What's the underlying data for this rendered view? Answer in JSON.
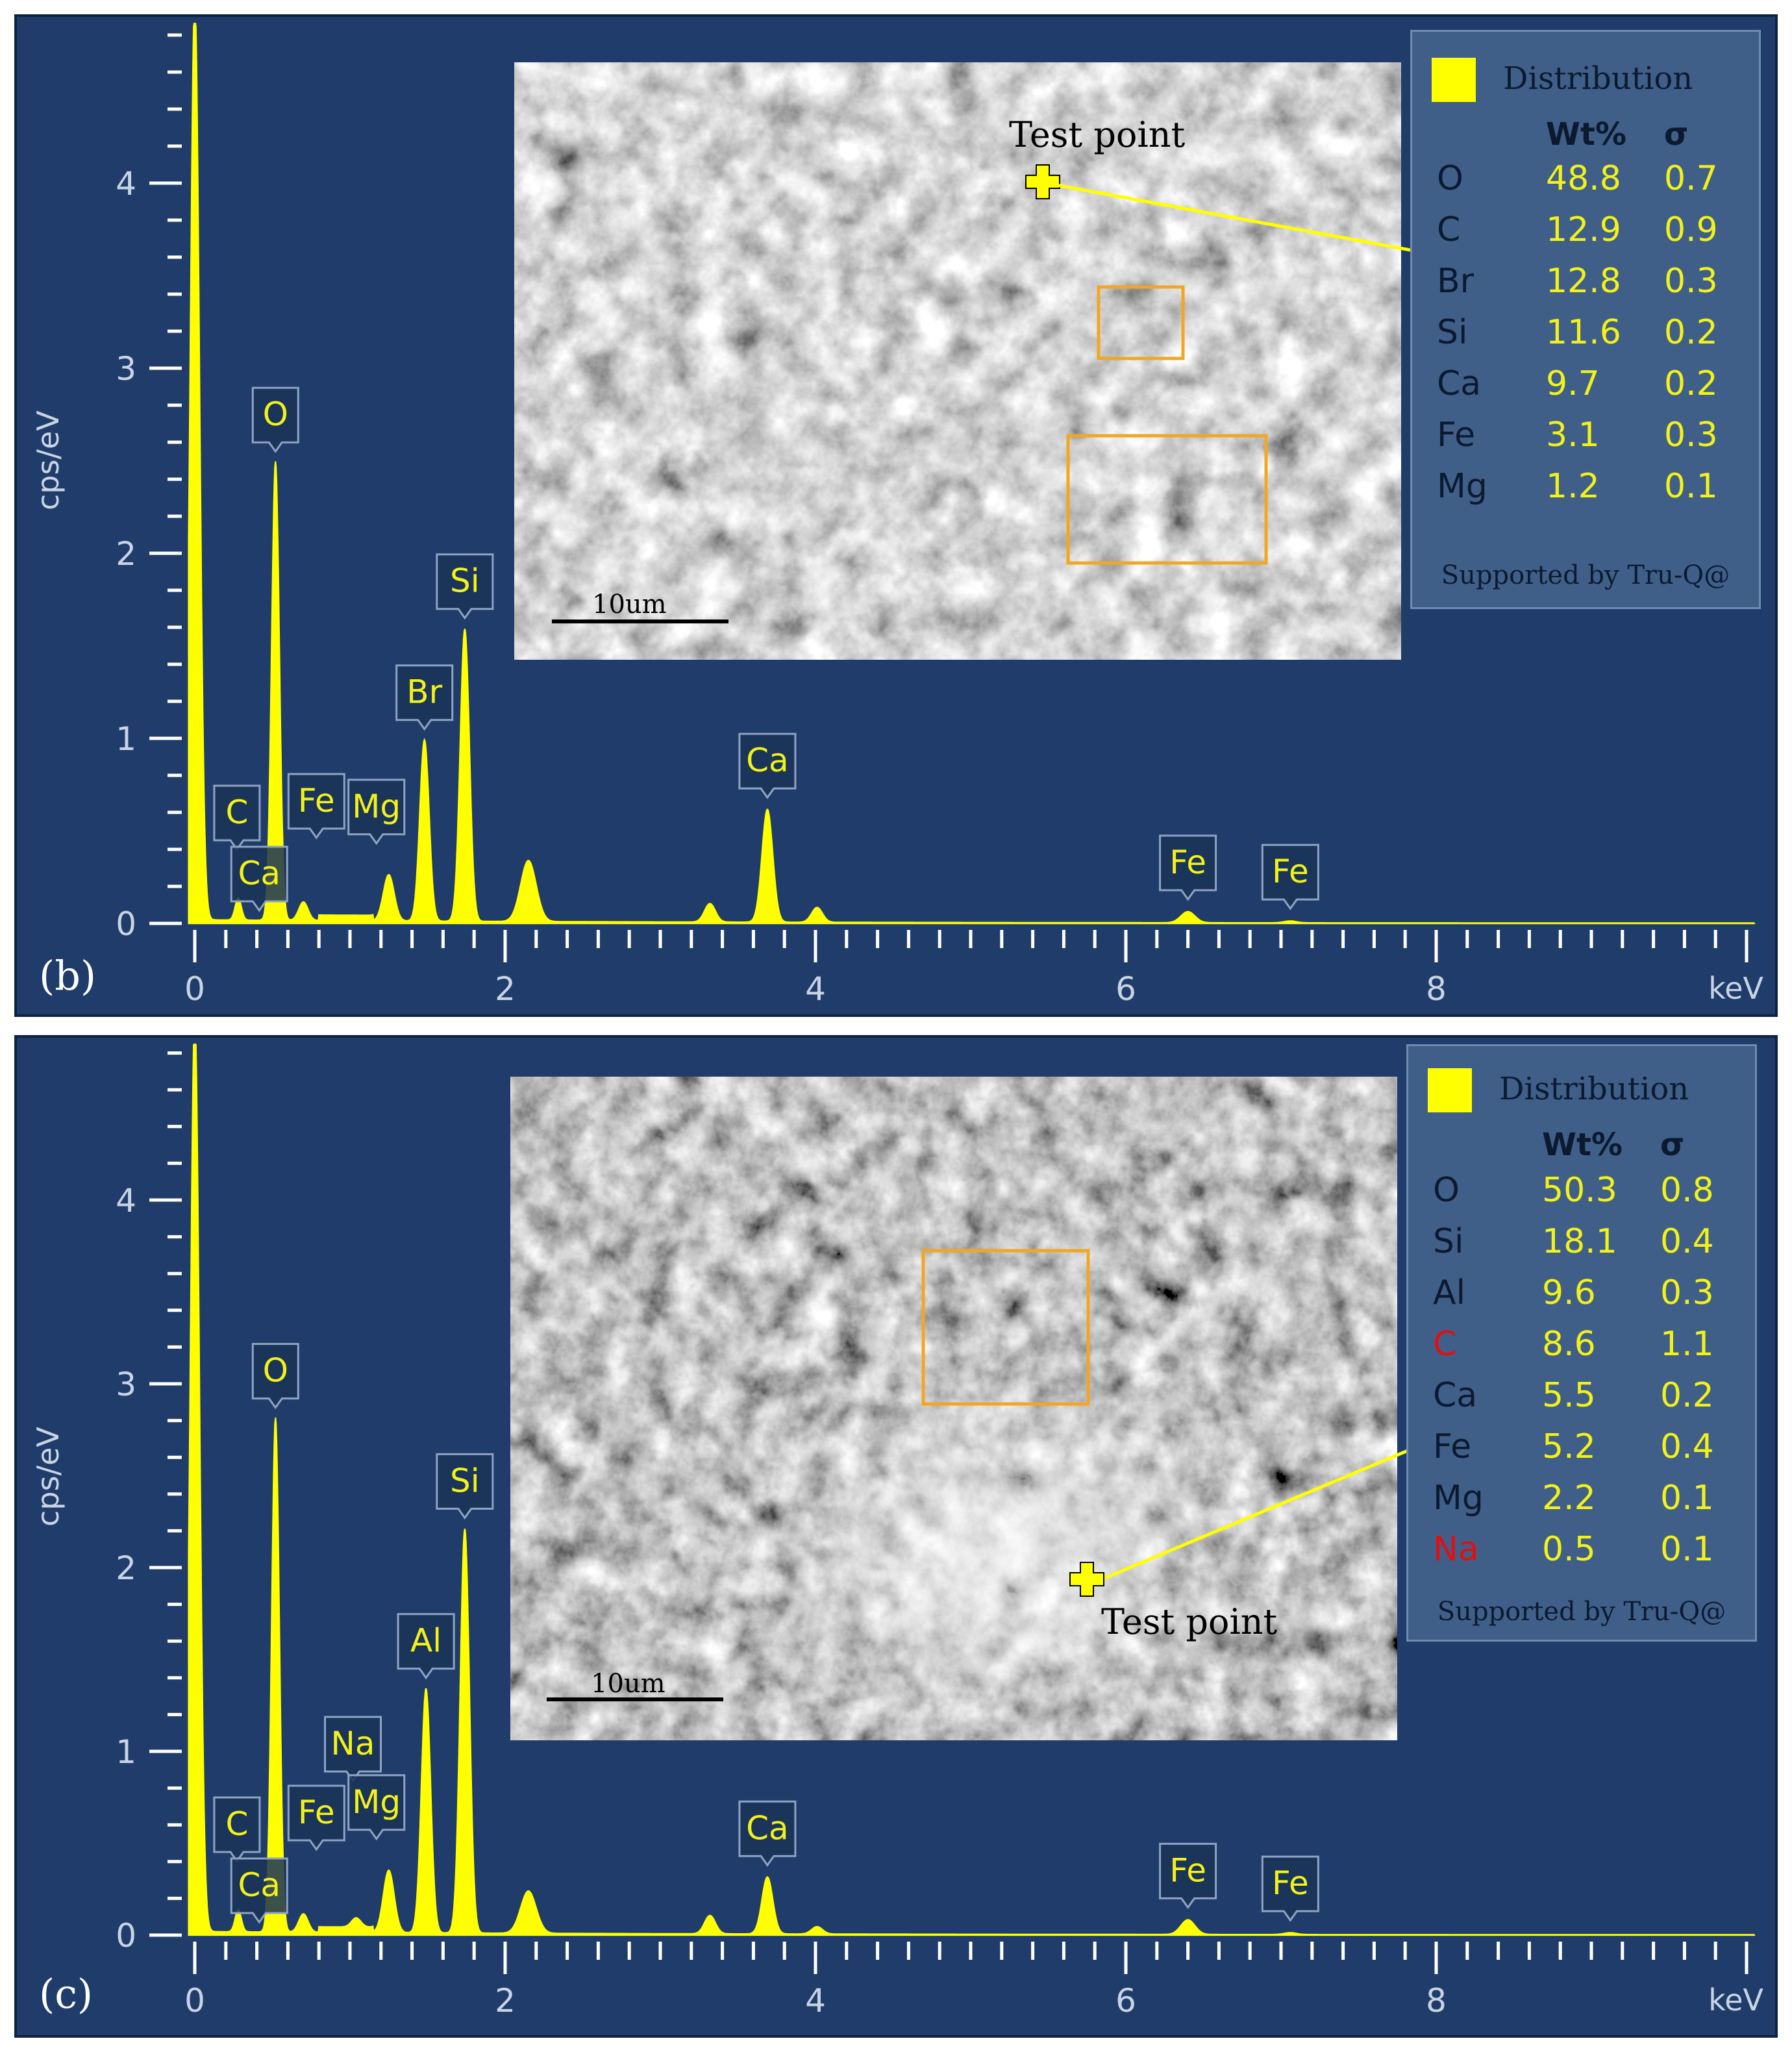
{
  "chart_data": [
    {
      "type": "line",
      "panel_label": "(b)",
      "xlabel": "keV",
      "ylabel": "cps/eV",
      "xlim": [
        -0.1,
        10.05
      ],
      "ylim": [
        0,
        4.9
      ],
      "x_ticks": [
        "0",
        "2",
        "4",
        "6",
        "8"
      ],
      "y_ticks": [
        "0",
        "1",
        "2",
        "3",
        "4"
      ],
      "series_color": "#ffff00",
      "peaks": [
        [
          0,
          5.0,
          0.03
        ],
        [
          0.28,
          0.12,
          0.02
        ],
        [
          0.52,
          2.48,
          0.025
        ],
        [
          0.7,
          0.1,
          0.03
        ],
        [
          1.25,
          0.25,
          0.035
        ],
        [
          1.48,
          0.98,
          0.03
        ],
        [
          1.74,
          1.58,
          0.03
        ],
        [
          2.15,
          0.33,
          0.05
        ],
        [
          3.32,
          0.1,
          0.035
        ],
        [
          3.69,
          0.61,
          0.035
        ],
        [
          4.01,
          0.08,
          0.035
        ],
        [
          6.4,
          0.06,
          0.045
        ],
        [
          7.06,
          0.01,
          0.04
        ]
      ],
      "peak_labels": [
        {
          "label": "O",
          "keV": 0.52,
          "cps": 2.48
        },
        {
          "label": "C",
          "keV": 0.28,
          "cps": 0.12
        },
        {
          "label": "Ca",
          "keV": 0.34,
          "cps": 0.08
        },
        {
          "label": "Fe",
          "keV": 0.7,
          "cps": 0.1
        },
        {
          "label": "Mg",
          "keV": 1.25,
          "cps": 0.25
        },
        {
          "label": "Br",
          "keV": 1.48,
          "cps": 0.98
        },
        {
          "label": "Si",
          "keV": 1.74,
          "cps": 1.58
        },
        {
          "label": "Ca",
          "keV": 3.69,
          "cps": 0.61
        },
        {
          "label": "Fe",
          "keV": 6.4,
          "cps": 0.06
        },
        {
          "label": "Fe",
          "keV": 7.06,
          "cps": 0.01
        }
      ],
      "inset": {
        "scale_label": "10um",
        "test_point_label": "Test point"
      },
      "table": {
        "legend_label": "Distribution",
        "col_wt": "Wt%",
        "col_sigma": "σ",
        "rows": [
          {
            "element": "O",
            "wt": "48.8",
            "sigma": "0.7",
            "color": "#0c1a30"
          },
          {
            "element": "C",
            "wt": "12.9",
            "sigma": "0.9",
            "color": "#0c1a30"
          },
          {
            "element": "Br",
            "wt": "12.8",
            "sigma": "0.3",
            "color": "#0c1a30"
          },
          {
            "element": "Si",
            "wt": "11.6",
            "sigma": "0.2",
            "color": "#0c1a30"
          },
          {
            "element": "Ca",
            "wt": "9.7",
            "sigma": "0.2",
            "color": "#0c1a30"
          },
          {
            "element": "Fe",
            "wt": "3.1",
            "sigma": "0.3",
            "color": "#0c1a30"
          },
          {
            "element": "Mg",
            "wt": "1.2",
            "sigma": "0.1",
            "color": "#0c1a30"
          }
        ],
        "support": "Supported by Tru-Q@"
      }
    },
    {
      "type": "line",
      "panel_label": "(c)",
      "xlabel": "keV",
      "ylabel": "cps/eV",
      "xlim": [
        -0.1,
        10.05
      ],
      "ylim": [
        0,
        4.9
      ],
      "x_ticks": [
        "0",
        "2",
        "4",
        "6",
        "8"
      ],
      "y_ticks": [
        "0",
        "1",
        "2",
        "3",
        "4"
      ],
      "series_color": "#ffff00",
      "peaks": [
        [
          0,
          5.0,
          0.03
        ],
        [
          0.28,
          0.12,
          0.02
        ],
        [
          0.52,
          2.8,
          0.025
        ],
        [
          0.7,
          0.1,
          0.03
        ],
        [
          1.04,
          0.05,
          0.03
        ],
        [
          1.25,
          0.34,
          0.035
        ],
        [
          1.49,
          1.33,
          0.03
        ],
        [
          1.74,
          2.2,
          0.03
        ],
        [
          2.15,
          0.23,
          0.05
        ],
        [
          3.32,
          0.1,
          0.035
        ],
        [
          3.69,
          0.31,
          0.035
        ],
        [
          4.01,
          0.04,
          0.035
        ],
        [
          6.4,
          0.08,
          0.045
        ],
        [
          7.06,
          0.01,
          0.04
        ]
      ],
      "peak_labels": [
        {
          "label": "O",
          "keV": 0.52,
          "cps": 2.8
        },
        {
          "label": "C",
          "keV": 0.28,
          "cps": 0.12
        },
        {
          "label": "Ca",
          "keV": 0.34,
          "cps": 0.08
        },
        {
          "label": "Fe",
          "keV": 0.7,
          "cps": 0.1
        },
        {
          "label": "Na",
          "keV": 1.04,
          "cps": 0.05
        },
        {
          "label": "Mg",
          "keV": 1.25,
          "cps": 0.34
        },
        {
          "label": "Al",
          "keV": 1.49,
          "cps": 1.33
        },
        {
          "label": "Si",
          "keV": 1.74,
          "cps": 2.2
        },
        {
          "label": "Ca",
          "keV": 3.69,
          "cps": 0.31
        },
        {
          "label": "Fe",
          "keV": 6.4,
          "cps": 0.08
        },
        {
          "label": "Fe",
          "keV": 7.06,
          "cps": 0.01
        }
      ],
      "inset": {
        "scale_label": "10um",
        "test_point_label": "Test point"
      },
      "table": {
        "legend_label": "Distribution",
        "col_wt": "Wt%",
        "col_sigma": "σ",
        "rows": [
          {
            "element": "O",
            "wt": "50.3",
            "sigma": "0.8",
            "color": "#0c1a30"
          },
          {
            "element": "Si",
            "wt": "18.1",
            "sigma": "0.4",
            "color": "#0c1a30"
          },
          {
            "element": "Al",
            "wt": "9.6",
            "sigma": "0.3",
            "color": "#0c1a30"
          },
          {
            "element": "C",
            "wt": "8.6",
            "sigma": "1.1",
            "color": "#e01010"
          },
          {
            "element": "Ca",
            "wt": "5.5",
            "sigma": "0.2",
            "color": "#0c1a30"
          },
          {
            "element": "Fe",
            "wt": "5.2",
            "sigma": "0.4",
            "color": "#0c1a30"
          },
          {
            "element": "Mg",
            "wt": "2.2",
            "sigma": "0.1",
            "color": "#0c1a30"
          },
          {
            "element": "Na",
            "wt": "0.5",
            "sigma": "0.1",
            "color": "#e01010"
          }
        ],
        "support": "Supported by Tru-Q@"
      }
    }
  ]
}
